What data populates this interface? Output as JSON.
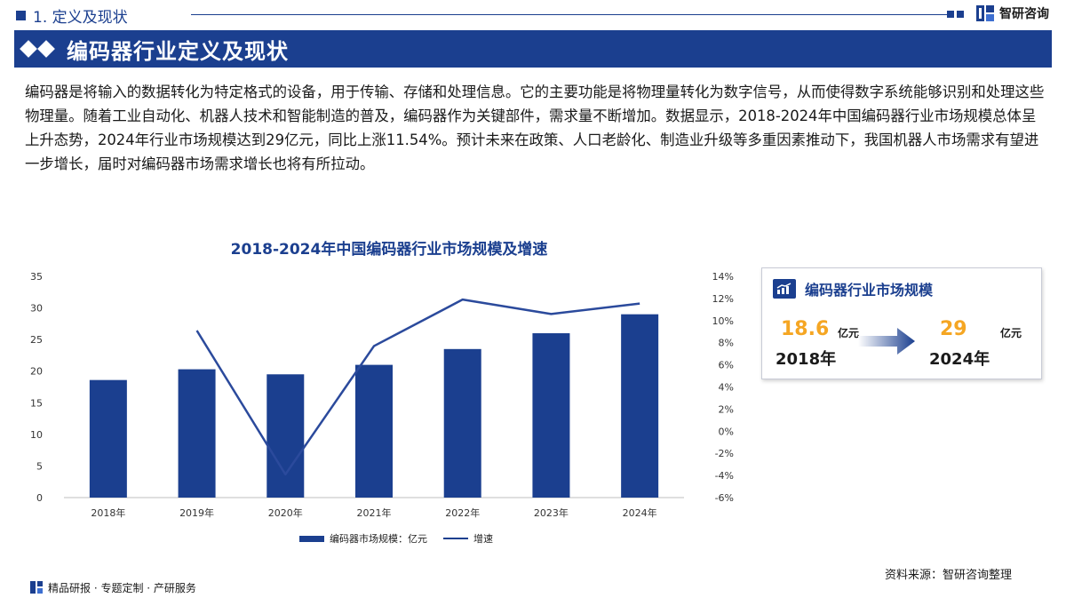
{
  "header": {
    "section_title": "1. 定义及现状",
    "logo_text": "智研咨询"
  },
  "banner": {
    "title": "编码器行业定义及现状"
  },
  "intro": {
    "text": "编码器是将输入的数据转化为特定格式的设备，用于传输、存储和处理信息。它的主要功能是将物理量转化为数字信号，从而使得数字系统能够识别和处理这些物理量。随着工业自动化、机器人技术和智能制造的普及，编码器作为关键部件，需求量不断增加。数据显示，2018-2024年中国编码器行业市场规模总体呈上升态势，2024年行业市场规模达到29亿元，同比上涨11.54%。预计未来在政策、人口老龄化、制造业升级等多重因素推动下，我国机器人市场需求有望进一步增长，届时对编码器市场需求增长也将有所拉动。"
  },
  "chart_data": {
    "type": "bar",
    "title": "2018-2024年中国编码器行业市场规模及增速",
    "categories": [
      "2018年",
      "2019年",
      "2020年",
      "2021年",
      "2022年",
      "2023年",
      "2024年"
    ],
    "series": [
      {
        "name": "编码器市场规模：亿元",
        "type": "bar",
        "axis": "left",
        "values": [
          18.6,
          20.3,
          19.5,
          21.0,
          23.5,
          26.0,
          29.0
        ]
      },
      {
        "name": "增速",
        "type": "line",
        "axis": "right",
        "values": [
          null,
          9.1,
          -3.9,
          7.7,
          11.9,
          10.6,
          11.54
        ]
      }
    ],
    "ylim_left": [
      0,
      35
    ],
    "yticks_left": [
      "0",
      "5",
      "10",
      "15",
      "20",
      "25",
      "30",
      "35"
    ],
    "ylim_right": [
      -6,
      14
    ],
    "yticks_right": [
      "-6%",
      "-4%",
      "-2%",
      "0%",
      "2%",
      "4%",
      "6%",
      "8%",
      "10%",
      "12%",
      "14%"
    ],
    "grid": false,
    "legend_position": "bottom",
    "colors": {
      "bar": "#1b3f8f",
      "line": "#2b4a9c"
    }
  },
  "card": {
    "title": "编码器行业市场规模",
    "from_value": "18.6",
    "from_unit": "亿元",
    "from_year": "2018年",
    "to_value": "29",
    "to_unit": "亿元",
    "to_year": "2024年"
  },
  "source": "资料来源：智研咨询整理",
  "footer": {
    "text": "精品研报 · 专题定制 · 产研服务"
  },
  "colors": {
    "brand": "#1b3f8f",
    "accent": "#f5a623"
  }
}
